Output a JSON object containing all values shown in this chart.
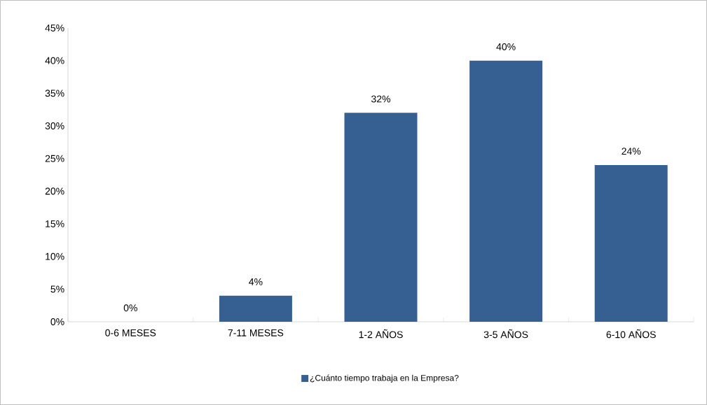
{
  "chart_data": {
    "type": "bar",
    "categories": [
      "0-6 MESES",
      "7-11 MESES",
      "1-2 AÑOS",
      "3-5 AÑOS",
      "6-10 AÑOS"
    ],
    "series": [
      {
        "name": "¿Cuánto tiempo trabaja en la Empresa?",
        "color": "#366092",
        "values": [
          0,
          4,
          32,
          40,
          24
        ],
        "value_labels": [
          "0%",
          "4%",
          "32%",
          "40%",
          "24%"
        ]
      }
    ],
    "ylim": [
      0,
      45
    ],
    "yticks": [
      {
        "value": 0,
        "label": "0%"
      },
      {
        "value": 5,
        "label": "5%"
      },
      {
        "value": 10,
        "label": "10%"
      },
      {
        "value": 15,
        "label": "15%"
      },
      {
        "value": 20,
        "label": "20%"
      },
      {
        "value": 25,
        "label": "25%"
      },
      {
        "value": 30,
        "label": "30%"
      },
      {
        "value": 35,
        "label": "35%"
      },
      {
        "value": 40,
        "label": "40%"
      },
      {
        "value": 45,
        "label": "45%"
      }
    ],
    "legend": "bottom"
  }
}
